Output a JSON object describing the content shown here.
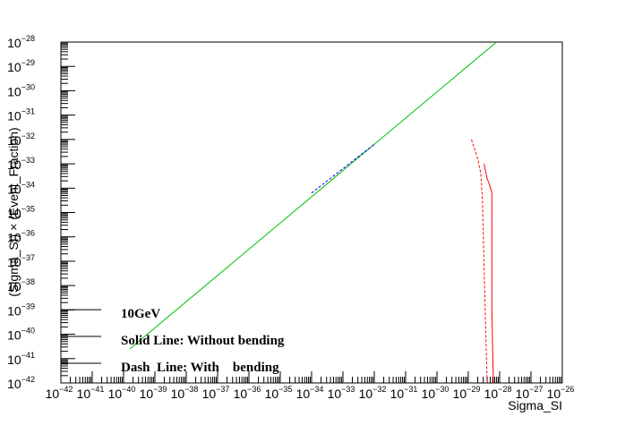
{
  "chart_data": {
    "type": "line",
    "title": "",
    "xlabel": "Sigma_SI",
    "ylabel": "(Sigma_SI) × (Event_Fraction)",
    "xscale": "log",
    "yscale": "log",
    "xlim_exp": [
      -42,
      -26
    ],
    "ylim_exp": [
      -42,
      -28
    ],
    "x_tick_labels": [
      "10",
      "10",
      "10",
      "10",
      "10",
      "10",
      "10",
      "10",
      "10",
      "10",
      "10",
      "10",
      "10",
      "10",
      "10",
      "10",
      "10"
    ],
    "x_tick_exponents": [
      "−42",
      "−41",
      "−40",
      "−39",
      "−38",
      "−37",
      "−36",
      "−35",
      "−34",
      "−33",
      "−32",
      "−31",
      "−30",
      "−29",
      "−28",
      "−27",
      "−26"
    ],
    "y_tick_labels": [
      "10",
      "10",
      "10",
      "10",
      "10",
      "10",
      "10",
      "10",
      "10",
      "10",
      "10",
      "10",
      "10",
      "10",
      "10"
    ],
    "y_tick_exponents": [
      "−42",
      "−41",
      "−40",
      "−39",
      "−38",
      "−37",
      "−36",
      "−35",
      "−34",
      "−33",
      "−32",
      "−31",
      "−30",
      "−29",
      "−28"
    ],
    "grid": false,
    "series": [
      {
        "color": "#00c000",
        "style": "solid",
        "x_exp": [
          -39.8,
          -28.1
        ],
        "y_exp": [
          -40.6,
          -28.0
        ]
      },
      {
        "color": "#0000ff",
        "style": "dashed",
        "x_exp": [
          -34.0,
          -32.0
        ],
        "y_exp": [
          -34.2,
          -32.2
        ]
      },
      {
        "color": "#ff0000",
        "style": "solid",
        "x_exp": [
          -28.5,
          -28.45,
          -28.4,
          -28.3,
          -28.25,
          -28.25,
          -28.2
        ],
        "y_exp": [
          -33.0,
          -33.3,
          -33.6,
          -33.95,
          -34.2,
          -39.0,
          -42.0
        ]
      },
      {
        "color": "#ff0000",
        "style": "dashed",
        "x_exp": [
          -28.9,
          -28.7,
          -28.6,
          -28.55,
          -28.5,
          -28.4
        ],
        "y_exp": [
          -32.0,
          -32.8,
          -33.4,
          -34.5,
          -37.0,
          -42.0
        ]
      }
    ],
    "annotations": [
      {
        "text": "10GeV",
        "x_exp": -39.8,
        "y_exp": -39.1
      },
      {
        "text": "Solid Line: Without bending",
        "x_exp": -39.8,
        "y_exp": -40.2
      },
      {
        "text": "Dash  Line: With    bending",
        "x_exp": -39.8,
        "y_exp": -41.3
      }
    ]
  }
}
